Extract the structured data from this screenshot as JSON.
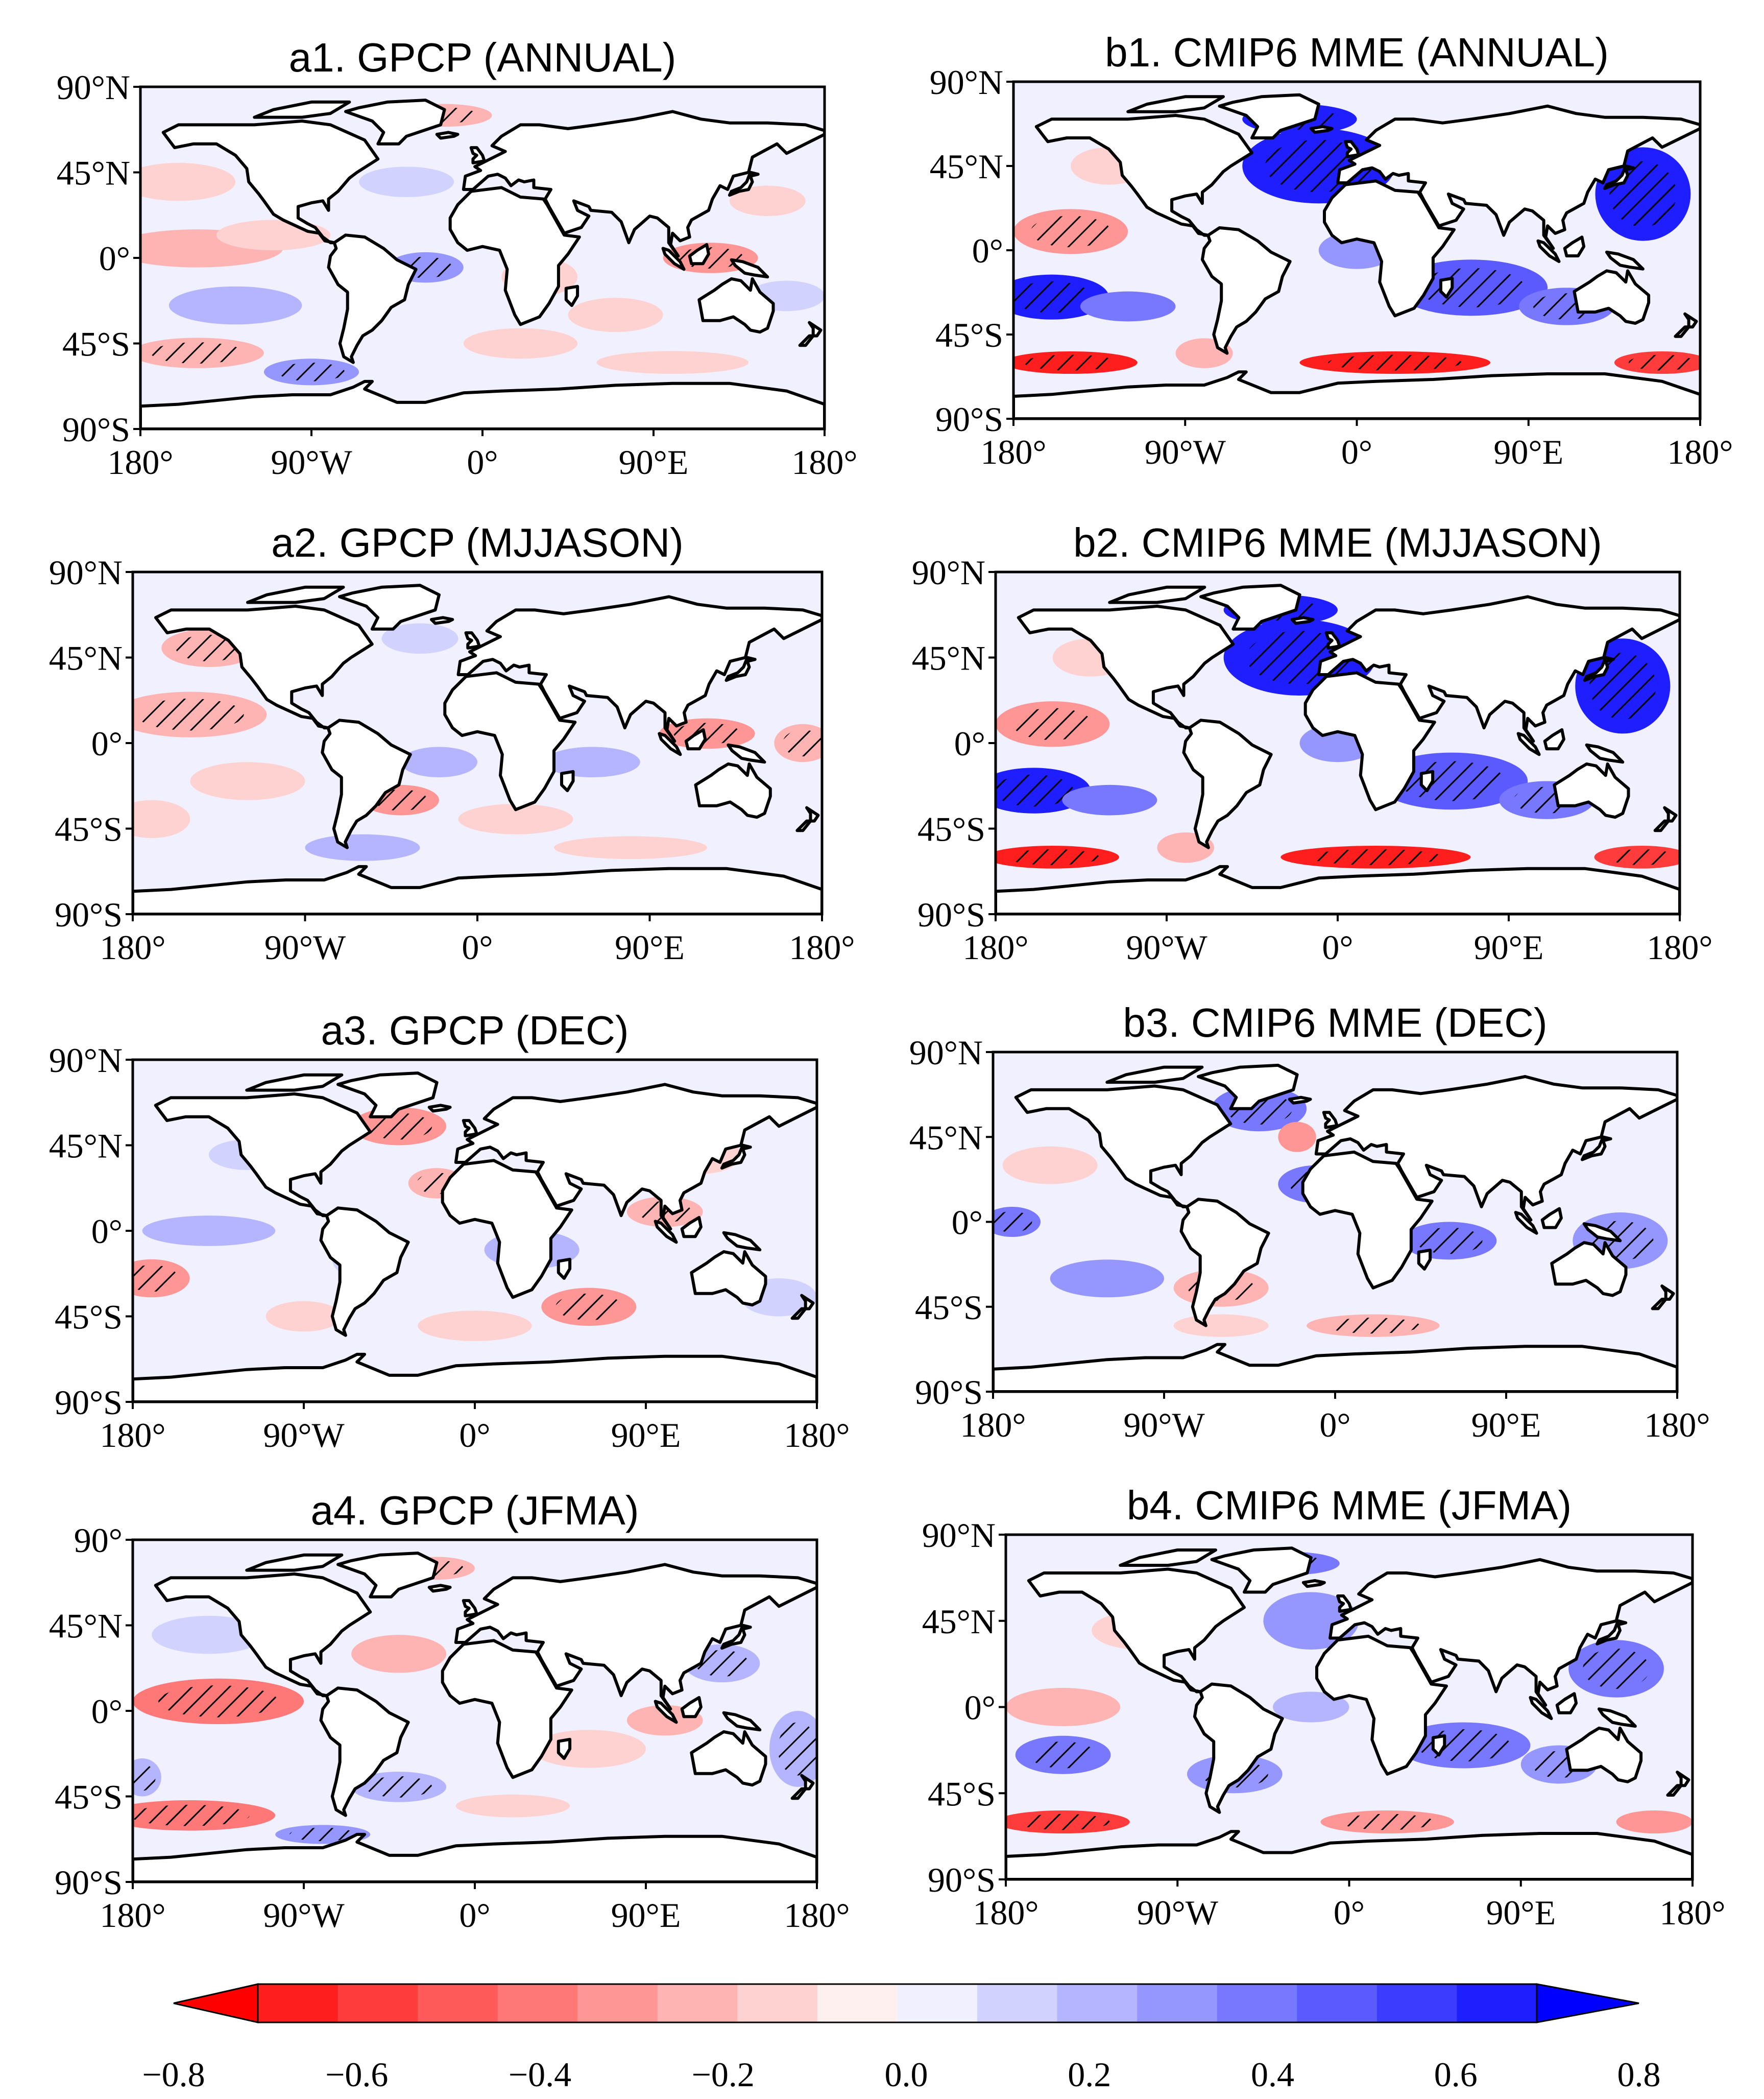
{
  "panels": [
    {
      "id": "a1",
      "title": "a1. GPCP (ANNUAL)",
      "lat_labels": [
        "90°N",
        "45°N",
        "0°",
        "45°S",
        "90°S"
      ],
      "lon_labels": [
        "180°",
        "90°W",
        "0°",
        "90°E",
        "180°"
      ],
      "pattern": "gpcp_annual"
    },
    {
      "id": "b1",
      "title": "b1. CMIP6 MME (ANNUAL)",
      "lat_labels": [
        "90°N",
        "45°N",
        "0°",
        "45°S",
        "90°S"
      ],
      "lon_labels": [
        "180°",
        "90°W",
        "0°",
        "90°E",
        "180°"
      ],
      "pattern": "mme_strong"
    },
    {
      "id": "a2",
      "title": "a2. GPCP (MJJASON)",
      "lat_labels": [
        "90°N",
        "45°N",
        "0°",
        "45°S",
        "90°S"
      ],
      "lon_labels": [
        "180°",
        "90°W",
        "0°",
        "90°E",
        "180°"
      ],
      "pattern": "gpcp_mjjason"
    },
    {
      "id": "b2",
      "title": "b2. CMIP6 MME (MJJASON)",
      "lat_labels": [
        "90°N",
        "45°N",
        "0°",
        "45°S",
        "90°S"
      ],
      "lon_labels": [
        "180°",
        "90°W",
        "0°",
        "90°E",
        "180°"
      ],
      "pattern": "mme_strong"
    },
    {
      "id": "a3",
      "title": "a3. GPCP (DEC)",
      "lat_labels": [
        "90°N",
        "45°N",
        "0°",
        "45°S",
        "90°S"
      ],
      "lon_labels": [
        "180°",
        "90°W",
        "0°",
        "90°E",
        "180°"
      ],
      "pattern": "gpcp_dec"
    },
    {
      "id": "b3",
      "title": "b3. CMIP6 MME (DEC)",
      "lat_labels": [
        "90°N",
        "45°N",
        "0°",
        "45°S",
        "90°S"
      ],
      "lon_labels": [
        "180°",
        "90°W",
        "0°",
        "90°E",
        "180°"
      ],
      "pattern": "mme_weak"
    },
    {
      "id": "a4",
      "title": "a4. GPCP (JFMA)",
      "lat_labels": [
        "90°",
        "45°N",
        "0°",
        "45°S",
        "90°S"
      ],
      "lon_labels": [
        "180°",
        "90°W",
        "0°",
        "90°E",
        "180°"
      ],
      "pattern": "gpcp_jfma"
    },
    {
      "id": "b4",
      "title": "b4. CMIP6 MME (JFMA)",
      "lat_labels": [
        "90°N",
        "45°N",
        "0°",
        "45°S",
        "90°S"
      ],
      "lon_labels": [
        "180°",
        "90°W",
        "0°",
        "90°E",
        "180°"
      ],
      "pattern": "mme_jfma"
    }
  ],
  "colorbar": {
    "min": -0.8,
    "max": 0.8,
    "labels": [
      "−0.8",
      "−0.6",
      "−0.4",
      "−0.2",
      "0.0",
      "0.2",
      "0.4",
      "0.6",
      "0.8"
    ],
    "colors": [
      "#ff1e1e",
      "#ff3c3c",
      "#ff5a5a",
      "#ff7878",
      "#ff9696",
      "#ffb4b4",
      "#ffd2d2",
      "#fff0f0",
      "#f0f0ff",
      "#d2d2ff",
      "#b4b4ff",
      "#9696ff",
      "#7878ff",
      "#5a5aff",
      "#3c3cff",
      "#1e1eff"
    ],
    "under_color": "#ff0000",
    "over_color": "#0000ff"
  }
}
